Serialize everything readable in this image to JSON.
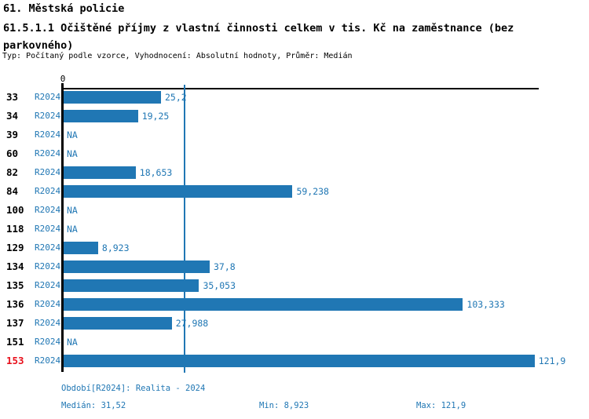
{
  "header": {
    "title": "61. Městská policie",
    "subtitle": "61.5.1.1 Očištěné příjmy z vlastní činnosti celkem v tis. Kč na zaměstnance (bez parkovného)",
    "meta": "Typ: Počítaný podle vzorce, Vyhodnocení: Absolutní hodnoty, Průměr: Medián"
  },
  "axis": {
    "zero_label": "0"
  },
  "chart_data": {
    "type": "bar",
    "orientation": "horizontal",
    "title": "61. Městská policie",
    "subtitle": "61.5.1.1 Očištěné příjmy z vlastní činnosti celkem v tis. Kč na zaměstnance (bez parkovného)",
    "meta": "Typ: Počítaný podle vzorce, Vyhodnocení: Absolutní hodnoty, Průměr: Medián",
    "categories": [
      "33",
      "34",
      "39",
      "60",
      "82",
      "84",
      "100",
      "118",
      "129",
      "134",
      "135",
      "136",
      "137",
      "151",
      "153"
    ],
    "series": [
      {
        "name": "R2024",
        "values": [
          25.2,
          19.25,
          null,
          null,
          18.653,
          59.238,
          null,
          null,
          8.923,
          37.8,
          35.053,
          103.333,
          27.988,
          null,
          121.9
        ]
      }
    ],
    "value_labels": [
      "25,2",
      "19,25",
      "NA",
      "NA",
      "18,653",
      "59,238",
      "NA",
      "NA",
      "8,923",
      "37,8",
      "35,053",
      "103,333",
      "27,988",
      "NA",
      "121,9"
    ],
    "na_label": "NA",
    "xlim": [
      0,
      123
    ],
    "median_line_value": 31.52,
    "stats": {
      "median": 31.52,
      "min": 8.923,
      "max": 121.9
    },
    "bar_color": "#2077b4",
    "axis_color": "#000000",
    "highlight_category": "153",
    "highlight_color": "#e8101c",
    "grid": false,
    "legend_position": "none"
  },
  "footer": {
    "period_line": "Období[R2024]: Realita - 2024",
    "median": "Medián: 31,52",
    "min": "Min: 8,923",
    "max": "Max: 121,9"
  }
}
